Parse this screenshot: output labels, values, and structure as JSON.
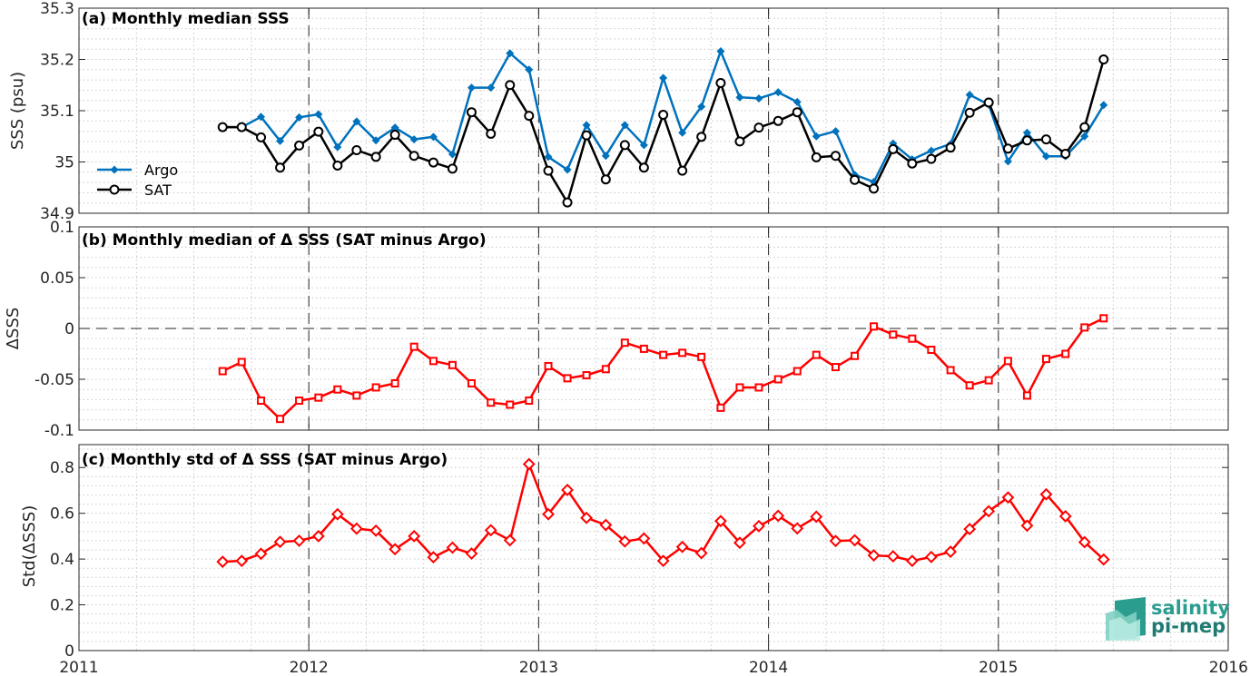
{
  "colors": {
    "argo": "#0072BD",
    "sat": "#000000",
    "delta": "#FF0000",
    "grid": "#c8c8c8"
  },
  "logo": {
    "line1": "salinity",
    "line2": "pi-mep"
  },
  "x_axis": {
    "ticks": [
      "2011",
      "2012",
      "2013",
      "2014",
      "2015",
      "2016"
    ]
  },
  "chart_data": [
    {
      "type": "line",
      "title": "(a) Monthly median SSS",
      "ylabel": "SSS (psu)",
      "xlim": [
        2011,
        2016
      ],
      "ylim": [
        34.9,
        35.3
      ],
      "yticks": [
        34.9,
        35,
        35.1,
        35.2,
        35.3
      ],
      "ytick_labels": [
        "34.9",
        "35",
        "35.1",
        "35.2",
        "35.3"
      ],
      "grid": true,
      "legend_position": "bottom-left",
      "x": [
        2011.625,
        2011.708,
        2011.792,
        2011.875,
        2011.958,
        2012.042,
        2012.125,
        2012.208,
        2012.292,
        2012.375,
        2012.458,
        2012.542,
        2012.625,
        2012.708,
        2012.792,
        2012.875,
        2012.958,
        2013.042,
        2013.125,
        2013.208,
        2013.292,
        2013.375,
        2013.458,
        2013.542,
        2013.625,
        2013.708,
        2013.792,
        2013.875,
        2013.958,
        2014.042,
        2014.125,
        2014.208,
        2014.292,
        2014.375,
        2014.458,
        2014.542,
        2014.625,
        2014.708,
        2014.792,
        2014.875,
        2014.958,
        2015.042,
        2015.125,
        2015.208,
        2015.292,
        2015.375,
        2015.458
      ],
      "series": [
        {
          "name": "Argo",
          "marker": "diamond",
          "values": [
            35.068,
            35.068,
            35.088,
            35.041,
            35.087,
            35.093,
            35.029,
            35.079,
            35.042,
            35.067,
            35.044,
            35.049,
            35.015,
            35.145,
            35.145,
            35.212,
            35.18,
            35.01,
            34.985,
            35.072,
            35.012,
            35.072,
            35.033,
            35.164,
            35.057,
            35.108,
            35.216,
            35.126,
            35.124,
            35.136,
            35.117,
            35.05,
            35.06,
            34.975,
            34.961,
            35.036,
            35.005,
            35.022,
            35.035,
            35.131,
            35.112,
            35.001,
            35.057,
            35.011,
            35.011,
            35.05,
            35.111
          ]
        },
        {
          "name": "SAT",
          "marker": "circle",
          "values": [
            35.068,
            35.068,
            35.048,
            34.989,
            35.032,
            35.059,
            34.993,
            35.023,
            35.01,
            35.053,
            35.012,
            34.999,
            34.987,
            35.097,
            35.055,
            35.15,
            35.09,
            34.983,
            34.921,
            35.052,
            34.966,
            35.033,
            34.989,
            35.092,
            34.983,
            35.049,
            35.154,
            35.04,
            35.067,
            35.08,
            35.097,
            35.009,
            35.012,
            34.965,
            34.948,
            35.025,
            34.997,
            35.006,
            35.028,
            35.096,
            35.116,
            35.026,
            35.042,
            35.044,
            35.016,
            35.068,
            35.2
          ]
        }
      ]
    },
    {
      "type": "line",
      "title": "(b) Monthly median of Δ SSS (SAT minus Argo)",
      "ylabel": "ΔSSS",
      "xlim": [
        2011,
        2016
      ],
      "ylim": [
        -0.1,
        0.1
      ],
      "yticks": [
        -0.1,
        -0.05,
        0,
        0.05,
        0.1
      ],
      "ytick_labels": [
        "-0.1",
        "-0.05",
        "0",
        "0.05",
        "0.1"
      ],
      "grid": true,
      "reference_line": 0,
      "x": [
        2011.625,
        2011.708,
        2011.792,
        2011.875,
        2011.958,
        2012.042,
        2012.125,
        2012.208,
        2012.292,
        2012.375,
        2012.458,
        2012.542,
        2012.625,
        2012.708,
        2012.792,
        2012.875,
        2012.958,
        2013.042,
        2013.125,
        2013.208,
        2013.292,
        2013.375,
        2013.458,
        2013.542,
        2013.625,
        2013.708,
        2013.792,
        2013.875,
        2013.958,
        2014.042,
        2014.125,
        2014.208,
        2014.292,
        2014.375,
        2014.458,
        2014.542,
        2014.625,
        2014.708,
        2014.792,
        2014.875,
        2014.958,
        2015.042,
        2015.125,
        2015.208,
        2015.292,
        2015.375,
        2015.458
      ],
      "series": [
        {
          "marker": "square",
          "values": [
            -0.042,
            -0.033,
            -0.071,
            -0.089,
            -0.071,
            -0.068,
            -0.06,
            -0.066,
            -0.058,
            -0.054,
            -0.018,
            -0.032,
            -0.036,
            -0.054,
            -0.073,
            -0.075,
            -0.071,
            -0.037,
            -0.049,
            -0.046,
            -0.04,
            -0.014,
            -0.02,
            -0.026,
            -0.024,
            -0.028,
            -0.078,
            -0.058,
            -0.058,
            -0.05,
            -0.042,
            -0.026,
            -0.038,
            -0.027,
            0.002,
            -0.006,
            -0.01,
            -0.021,
            -0.041,
            -0.056,
            -0.051,
            -0.032,
            -0.066,
            -0.03,
            -0.025,
            0.001,
            0.01
          ]
        }
      ]
    },
    {
      "type": "line",
      "title": "(c) Monthly std of Δ SSS (SAT minus Argo)",
      "ylabel": "Std(ΔSSS)",
      "xlim": [
        2011,
        2016
      ],
      "ylim": [
        0,
        0.9
      ],
      "yticks": [
        0,
        0.2,
        0.4,
        0.6,
        0.8
      ],
      "ytick_labels": [
        "0",
        "0.2",
        "0.4",
        "0.6",
        "0.8"
      ],
      "grid": true,
      "x": [
        2011.625,
        2011.708,
        2011.792,
        2011.875,
        2011.958,
        2012.042,
        2012.125,
        2012.208,
        2012.292,
        2012.375,
        2012.458,
        2012.542,
        2012.625,
        2012.708,
        2012.792,
        2012.875,
        2012.958,
        2013.042,
        2013.125,
        2013.208,
        2013.292,
        2013.375,
        2013.458,
        2013.542,
        2013.625,
        2013.708,
        2013.792,
        2013.875,
        2013.958,
        2014.042,
        2014.125,
        2014.208,
        2014.292,
        2014.375,
        2014.458,
        2014.542,
        2014.625,
        2014.708,
        2014.792,
        2014.875,
        2014.958,
        2015.042,
        2015.125,
        2015.208,
        2015.292,
        2015.375,
        2015.458
      ],
      "series": [
        {
          "marker": "diamond-open",
          "values": [
            0.388,
            0.392,
            0.423,
            0.475,
            0.48,
            0.5,
            0.596,
            0.533,
            0.524,
            0.443,
            0.5,
            0.408,
            0.45,
            0.424,
            0.526,
            0.482,
            0.815,
            0.596,
            0.702,
            0.58,
            0.549,
            0.477,
            0.49,
            0.392,
            0.453,
            0.426,
            0.566,
            0.471,
            0.544,
            0.589,
            0.534,
            0.585,
            0.479,
            0.482,
            0.416,
            0.412,
            0.392,
            0.409,
            0.432,
            0.531,
            0.609,
            0.669,
            0.546,
            0.683,
            0.587,
            0.474,
            0.398
          ]
        }
      ]
    }
  ]
}
